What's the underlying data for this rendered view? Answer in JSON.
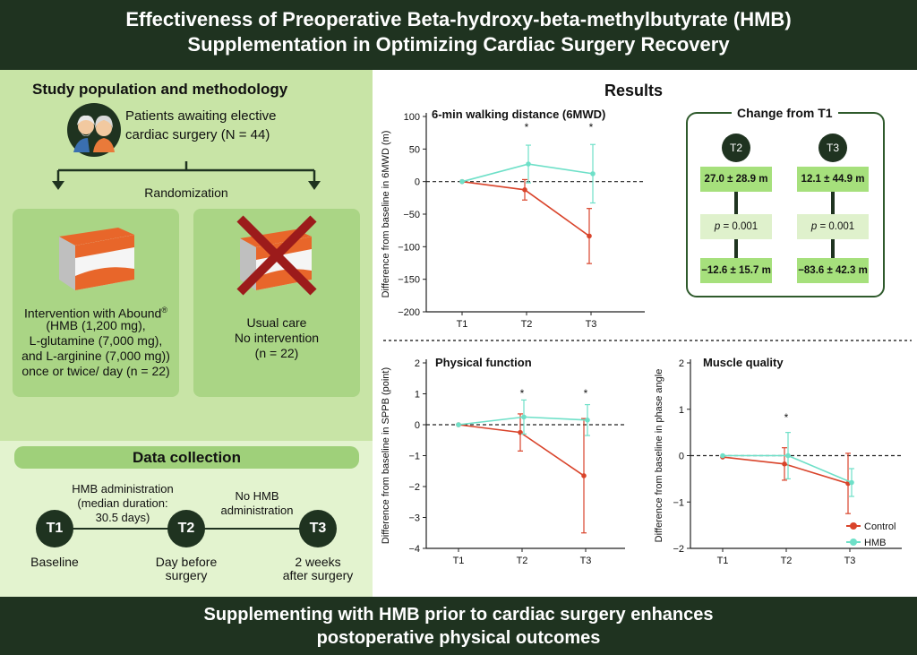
{
  "header": {
    "title_line1": "Effectiveness of Preoperative Beta-hydroxy-beta-methylbutyrate (HMB)",
    "title_line2": "Supplementation in Optimizing Cardiac Surgery Recovery"
  },
  "footer": {
    "line1": "Supplementing with HMB prior to cardiac surgery enhances",
    "line2": "postoperative physical outcomes"
  },
  "left": {
    "study_title": "Study population and methodology",
    "patients_line1": "Patients awaiting elective",
    "patients_line2": "cardiac surgery (N = 44)",
    "randomization": "Randomization",
    "intervention": {
      "line1": "Intervention with Abound",
      "line1_sup": "®",
      "line2": "(HMB (1,200 mg),",
      "line3": "L-glutamine (7,000 mg),",
      "line4": "and L-arginine (7,000 mg))",
      "line5": "once or twice/ day (n = 22)"
    },
    "usual_care": {
      "line1": "Usual care",
      "line2": "No intervention",
      "line3": "(n = 22)"
    },
    "data_collection": "Data collection",
    "timeline": {
      "t1": "T1",
      "t2": "T2",
      "t3": "T3",
      "t1_label": "Baseline",
      "t2_label_1": "Day before",
      "t2_label_2": "surgery",
      "t3_label_1": "2 weeks",
      "t3_label_2": "after surgery",
      "hmb_admin_1": "HMB administration",
      "hmb_admin_2": "(median duration:",
      "hmb_admin_3": "30.5 days)",
      "no_hmb_1": "No HMB",
      "no_hmb_2": "administration"
    }
  },
  "results": {
    "title": "Results",
    "change": {
      "title": "Change from T1",
      "t2": "T2",
      "t3": "T3",
      "t2_hmb": "27.0 ± 28.9 m",
      "t3_hmb": "12.1 ± 44.9 m",
      "t2_p": "= 0.001",
      "t3_p": "= 0.001",
      "p_label": "p",
      "t2_control": "−12.6 ± 15.7 m",
      "t3_control": "−83.6 ± 42.3 m"
    }
  },
  "colors": {
    "control": "#d9442b",
    "hmb": "#6ee0c8",
    "dark_green": "#1f3320"
  },
  "chart_data": [
    {
      "type": "line",
      "title": "6-min walking distance (6MWD)",
      "xlabel": "",
      "ylabel": "Difference from baseline in 6MWD (m)",
      "categories": [
        "T1",
        "T2",
        "T3"
      ],
      "ylim": [
        -200,
        100
      ],
      "yticks": [
        100,
        50,
        0,
        -50,
        -100,
        -150,
        -200
      ],
      "significance": [
        "",
        "*",
        "*"
      ],
      "series": [
        {
          "name": "Control",
          "values": [
            0,
            -12.6,
            -83.6
          ],
          "errors": [
            0,
            15.7,
            42.3
          ]
        },
        {
          "name": "HMB",
          "values": [
            0,
            27.0,
            12.1
          ],
          "errors": [
            0,
            28.9,
            44.9
          ]
        }
      ]
    },
    {
      "type": "line",
      "title": "Physical function",
      "xlabel": "",
      "ylabel": "Difference from baseline in SPPB (point)",
      "categories": [
        "T1",
        "T2",
        "T3"
      ],
      "ylim": [
        -4,
        2
      ],
      "yticks": [
        2,
        1,
        0,
        -1,
        -2,
        -3,
        -4
      ],
      "significance": [
        "",
        "*",
        "*"
      ],
      "series": [
        {
          "name": "Control",
          "values": [
            0,
            -0.25,
            -1.65
          ],
          "errors": [
            0,
            0.6,
            1.85
          ]
        },
        {
          "name": "HMB",
          "values": [
            0,
            0.25,
            0.15
          ],
          "errors": [
            0,
            0.55,
            0.5
          ]
        }
      ]
    },
    {
      "type": "line",
      "title": "Muscle quality",
      "xlabel": "",
      "ylabel": "Difference from baseline in phase angle",
      "categories": [
        "T1",
        "T2",
        "T3"
      ],
      "ylim": [
        -2,
        2
      ],
      "yticks": [
        2,
        1,
        0,
        -1,
        -2
      ],
      "significance": [
        "",
        "*",
        ""
      ],
      "legend": [
        "Control",
        "HMB"
      ],
      "series": [
        {
          "name": "Control",
          "values": [
            -0.03,
            -0.18,
            -0.6
          ],
          "errors": [
            0,
            0.35,
            0.65
          ]
        },
        {
          "name": "HMB",
          "values": [
            0,
            0,
            -0.58
          ],
          "errors": [
            0,
            0.5,
            0.3
          ]
        }
      ]
    }
  ]
}
